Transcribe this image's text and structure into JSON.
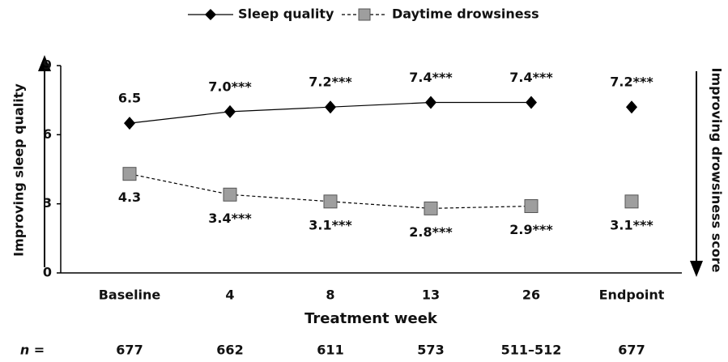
{
  "chart_data": {
    "type": "line",
    "categories": [
      "Baseline",
      "4",
      "8",
      "13",
      "26",
      "Endpoint"
    ],
    "series": [
      {
        "name": "Sleep quality",
        "color": "#000000",
        "marker": "diamond",
        "dashed": false,
        "values": [
          6.5,
          7.0,
          7.2,
          7.4,
          7.4,
          7.2
        ],
        "value_labels": [
          "6.5",
          "7.0***",
          "7.2***",
          "7.4***",
          "7.4***",
          "7.2***"
        ]
      },
      {
        "name": "Daytime drowsiness",
        "color": "#9e9e9e",
        "marker": "square",
        "dashed": true,
        "values": [
          4.3,
          3.4,
          3.1,
          2.8,
          2.9,
          3.1
        ],
        "value_labels": [
          "4.3",
          "3.4***",
          "3.1***",
          "2.8***",
          "2.9***",
          "3.1***"
        ]
      }
    ],
    "ylim": [
      0,
      9
    ],
    "yticks": [
      0,
      3,
      6,
      9
    ],
    "xlabel": "Treatment week",
    "ylabel": "Improving sleep quality",
    "y2label": "Improving drowsiness score",
    "n_label": "n =",
    "n_values": [
      677,
      662,
      611,
      573,
      "511–512",
      677
    ]
  }
}
